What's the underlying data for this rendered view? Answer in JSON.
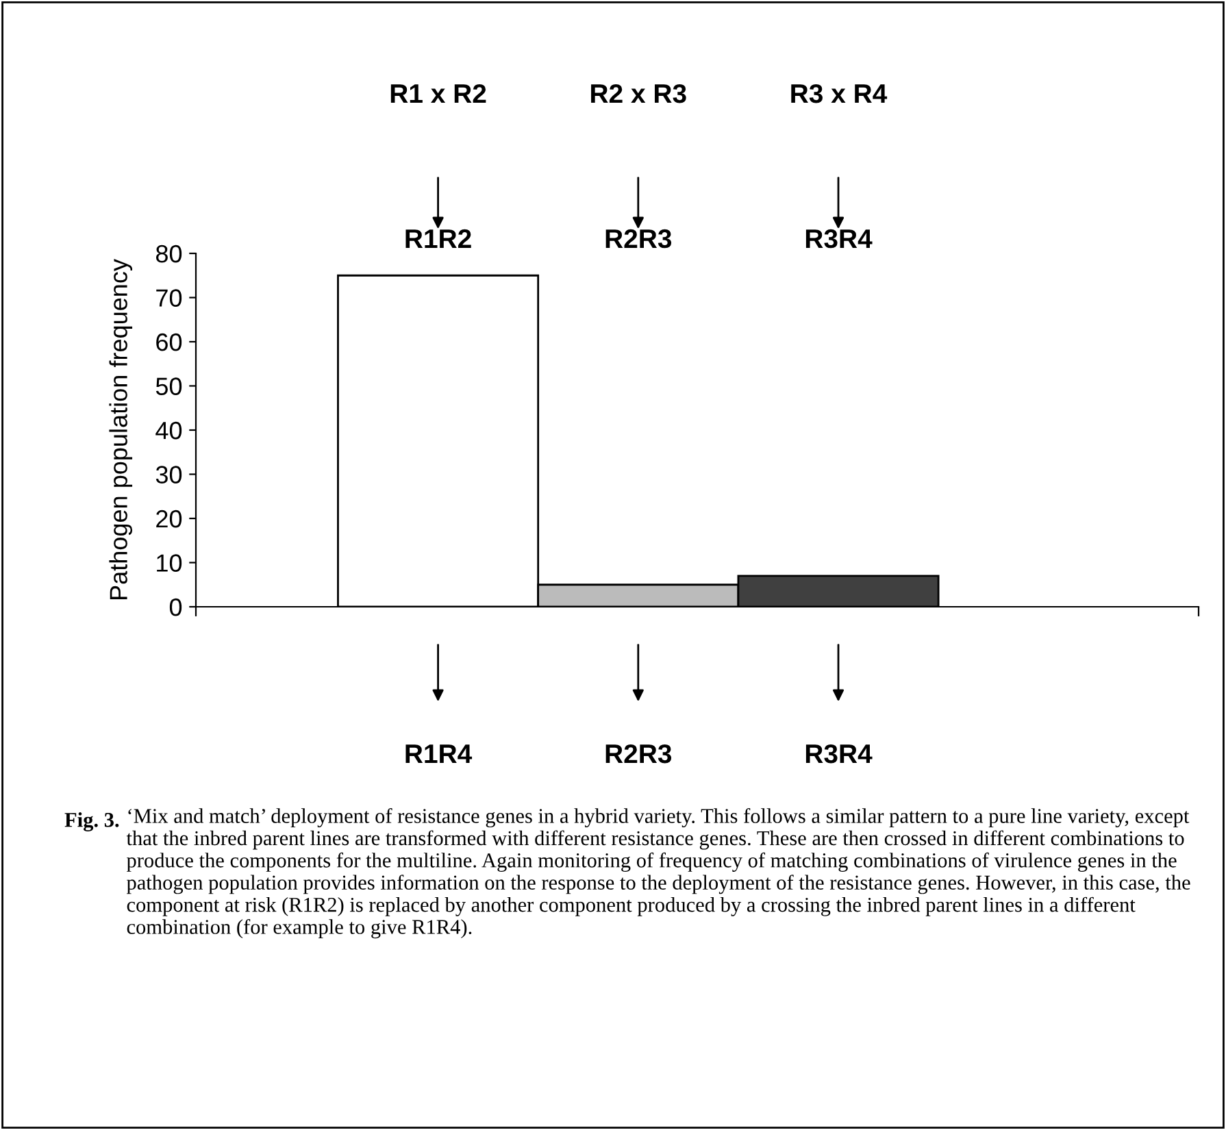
{
  "chart_data": {
    "type": "bar",
    "ylabel": "Pathogen population frequency",
    "categories": [
      "R1R2",
      "R2R3",
      "R3R4"
    ],
    "values": [
      75,
      5,
      7
    ],
    "colors": [
      "#ffffff",
      "#bbbbbb",
      "#404040"
    ],
    "ylim": [
      0,
      80
    ],
    "yticks": [
      0,
      10,
      20,
      30,
      40,
      50,
      60,
      70,
      80
    ],
    "tick_labels": "y",
    "grid": false,
    "legend": false,
    "annotations": [
      "R1 x R2",
      "R2 x R3",
      "R3 x R4",
      "R1R4",
      "R2R3",
      "R3R4",
      "Fig. 3.",
      "‘Mix and match’ deployment of resistance genes in a hybrid variety. This follows a similar pattern to a pure line variety, except that the inbred parent lines are transformed with different resistance genes. These are then crossed in different combinations to produce the components for the multiline. Again monitoring of frequency of matching combinations of virulence genes in the pathogen population provides information on the response to the deployment of the resistance genes. However, in this case, the component at risk (R1R2) is replaced by another component produced by a crossing the inbred parent lines in a different combination (for example to give R1R4)."
    ]
  }
}
